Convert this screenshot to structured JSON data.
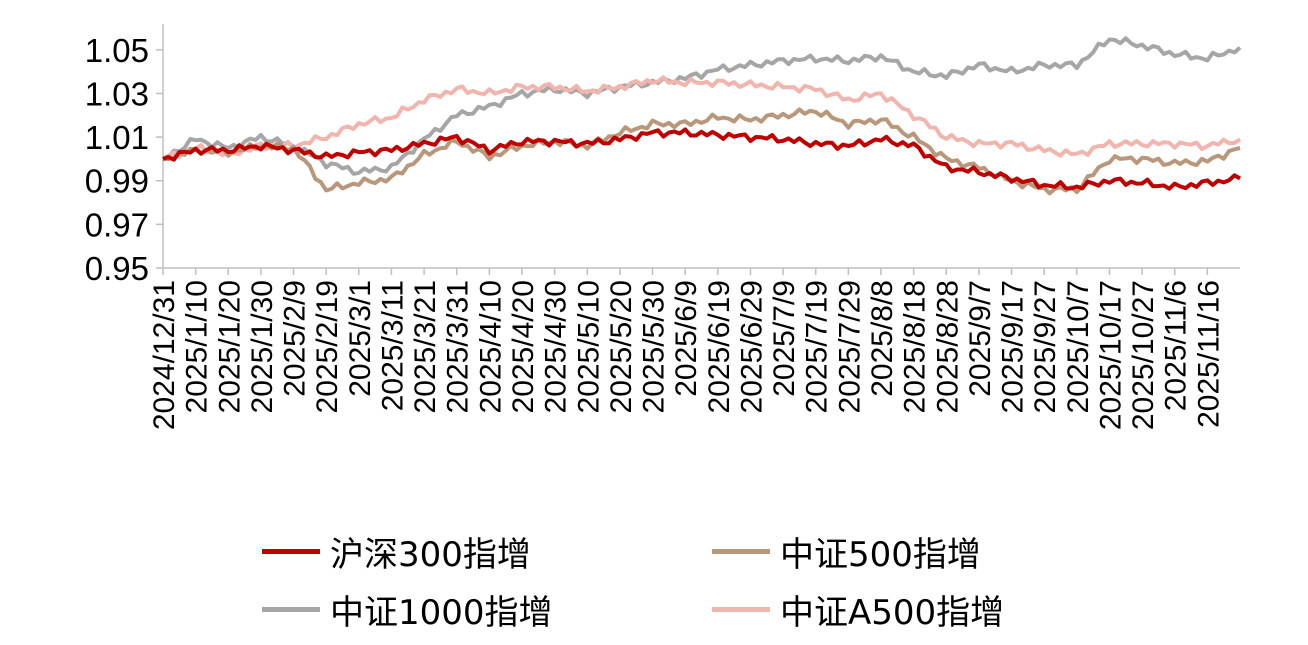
{
  "chart_data": {
    "type": "line",
    "title": "",
    "xlabel": "",
    "ylabel": "",
    "ylim": [
      0.95,
      1.06
    ],
    "yticks": [
      "1.05",
      "1.03",
      "1.01",
      "0.99",
      "0.97",
      "0.95"
    ],
    "x_tick_labels": [
      "2024/12/31",
      "2025/1/10",
      "2025/1/20",
      "2025/1/30",
      "2025/2/9",
      "2025/2/19",
      "2025/3/1",
      "2025/3/11",
      "2025/3/21",
      "2025/3/31",
      "2025/4/10",
      "2025/4/20",
      "2025/4/30",
      "2025/5/10",
      "2025/5/20",
      "2025/5/30",
      "2025/6/9",
      "2025/6/19",
      "2025/6/29",
      "2025/7/9",
      "2025/7/19",
      "2025/7/29",
      "2025/8/8",
      "2025/8/18",
      "2025/8/28",
      "2025/9/7",
      "2025/9/17",
      "2025/9/27",
      "2025/10/7",
      "2025/10/17",
      "2025/10/27",
      "2025/11/6",
      "2025/11/16"
    ],
    "x": [
      "2024/12/31",
      "2025/1/10",
      "2025/1/20",
      "2025/1/30",
      "2025/2/9",
      "2025/2/19",
      "2025/3/1",
      "2025/3/11",
      "2025/3/21",
      "2025/3/31",
      "2025/4/10",
      "2025/4/20",
      "2025/4/30",
      "2025/5/10",
      "2025/5/20",
      "2025/5/30",
      "2025/6/9",
      "2025/6/19",
      "2025/6/29",
      "2025/7/9",
      "2025/7/19",
      "2025/7/29",
      "2025/8/8",
      "2025/8/18",
      "2025/8/28",
      "2025/9/7",
      "2025/9/17",
      "2025/9/27",
      "2025/10/7",
      "2025/10/17",
      "2025/10/27",
      "2025/11/6",
      "2025/11/16",
      "2025/11/21"
    ],
    "grid": false,
    "legend_position": "bottom",
    "series": [
      {
        "name": "沪深300指增",
        "color": "#c00000",
        "values": [
          1.0,
          1.004,
          1.004,
          1.006,
          1.004,
          1.001,
          1.003,
          1.004,
          1.007,
          1.01,
          1.004,
          1.008,
          1.008,
          1.007,
          1.009,
          1.012,
          1.012,
          1.011,
          1.01,
          1.009,
          1.007,
          1.006,
          1.009,
          1.006,
          0.996,
          0.994,
          0.991,
          0.988,
          0.987,
          0.99,
          0.989,
          0.987,
          0.989,
          0.991
        ]
      },
      {
        "name": "中证500指增",
        "color": "#b8977a",
        "values": [
          1.0,
          1.004,
          1.003,
          1.006,
          1.005,
          0.986,
          0.989,
          0.991,
          1.002,
          1.008,
          1.001,
          1.006,
          1.008,
          1.006,
          1.012,
          1.016,
          1.016,
          1.019,
          1.018,
          1.02,
          1.022,
          1.016,
          1.018,
          1.01,
          1.0,
          0.996,
          0.99,
          0.986,
          0.986,
          1.0,
          1.0,
          0.998,
          0.999,
          1.005
        ]
      },
      {
        "name": "中证1000指增",
        "color": "#a6a6a6",
        "values": [
          1.0,
          1.009,
          1.005,
          1.01,
          1.006,
          0.998,
          0.994,
          0.996,
          1.009,
          1.02,
          1.024,
          1.03,
          1.032,
          1.03,
          1.033,
          1.035,
          1.037,
          1.041,
          1.043,
          1.045,
          1.046,
          1.045,
          1.047,
          1.04,
          1.038,
          1.043,
          1.04,
          1.043,
          1.043,
          1.055,
          1.052,
          1.048,
          1.046,
          1.051
        ]
      },
      {
        "name": "中证A500指增",
        "color": "#f2b5ad",
        "values": [
          1.0,
          1.005,
          1.002,
          1.006,
          1.006,
          1.01,
          1.016,
          1.019,
          1.027,
          1.032,
          1.03,
          1.033,
          1.033,
          1.031,
          1.033,
          1.036,
          1.035,
          1.035,
          1.034,
          1.033,
          1.032,
          1.027,
          1.03,
          1.02,
          1.01,
          1.007,
          1.007,
          1.004,
          1.002,
          1.007,
          1.007,
          1.007,
          1.006,
          1.009
        ]
      }
    ]
  }
}
